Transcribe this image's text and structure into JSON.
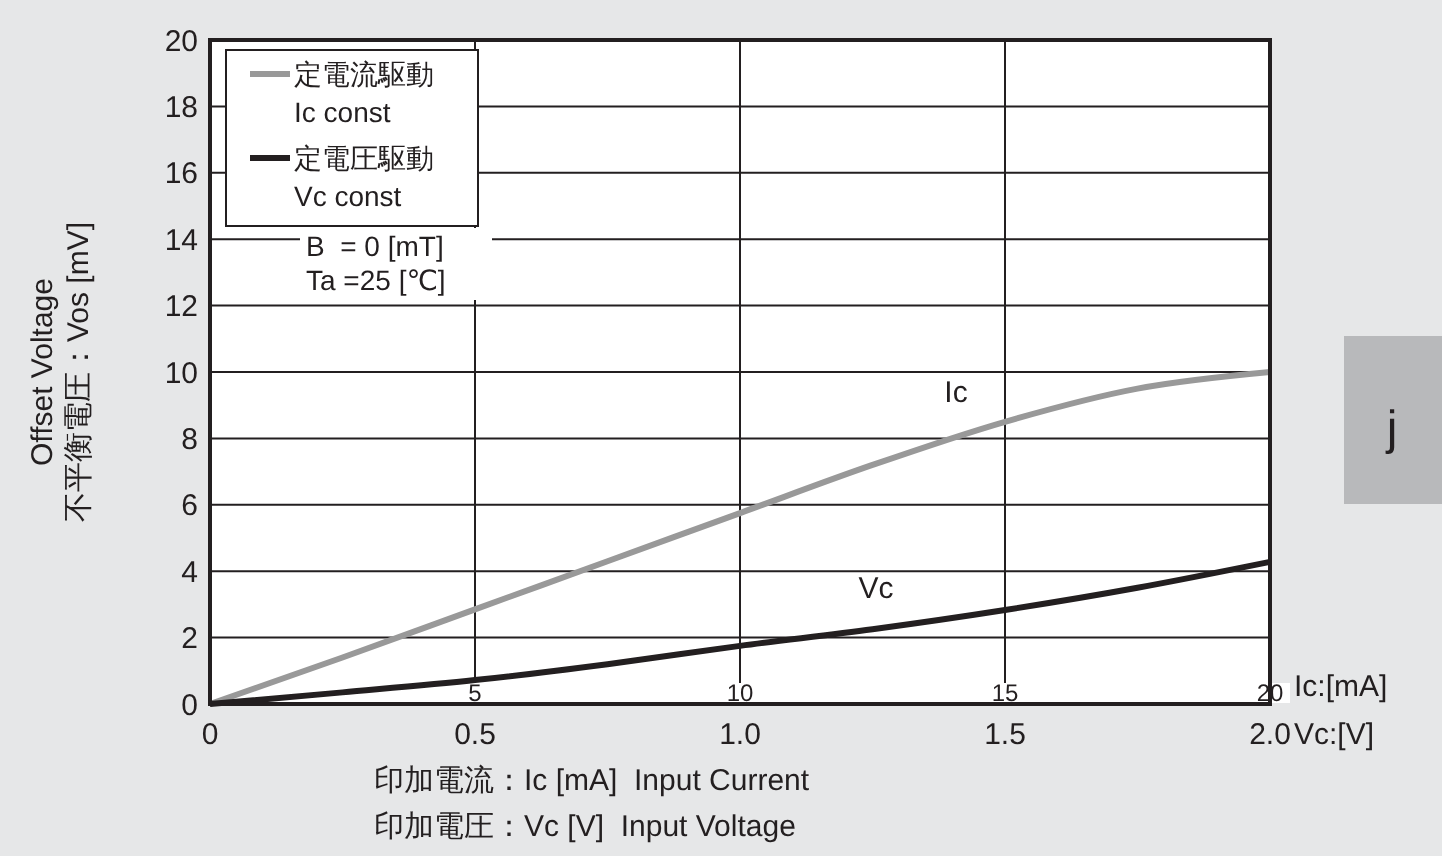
{
  "chart_data": {
    "type": "line",
    "xlabel": "Vc:[V]",
    "x2label": "Ic:[mA]",
    "ylabel": "Offset Voltage\n不平衡電圧：Vos [mV]",
    "xlim": [
      0,
      2.0
    ],
    "xticks": [
      0,
      0.5,
      {
        "value": 1.0,
        "label": "1.0"
      },
      1.5,
      {
        "value": 2.0,
        "label": "2.0"
      }
    ],
    "x2lim": [
      0,
      20
    ],
    "x2ticks": [
      5,
      10,
      15,
      20
    ],
    "ylim": [
      0,
      20
    ],
    "yticks": [
      0,
      2,
      4,
      6,
      8,
      10,
      12,
      14,
      16,
      18,
      20
    ],
    "grid": true,
    "legend": "top left",
    "line_style": "solid",
    "marker": "none",
    "series": [
      {
        "name": "定電流駆動\nIc const",
        "color": "#999999",
        "axis": "x2",
        "x": [
          0,
          2.5,
          5,
          7.5,
          10,
          12.5,
          15,
          17.5,
          20
        ],
        "values": [
          0,
          1.4,
          2.85,
          4.3,
          5.75,
          7.2,
          8.5,
          9.5,
          10
        ]
      },
      {
        "name": "定電圧駆動\nVc const",
        "color": "#231f20",
        "x": [
          0,
          0.25,
          0.5,
          0.75,
          1.0,
          1.25,
          1.5,
          1.75,
          2.0
        ],
        "values": [
          0,
          0.35,
          0.72,
          1.2,
          1.75,
          2.25,
          2.83,
          3.5,
          4.28
        ]
      }
    ],
    "annotations": [
      "B  = 0 [mT]",
      "Ta =25 [℃]",
      "Ic",
      "Vc",
      "印加電流：Ic [mA]  Input Current",
      "印加電圧：Vc [V]  Input Voltage",
      "j"
    ]
  }
}
